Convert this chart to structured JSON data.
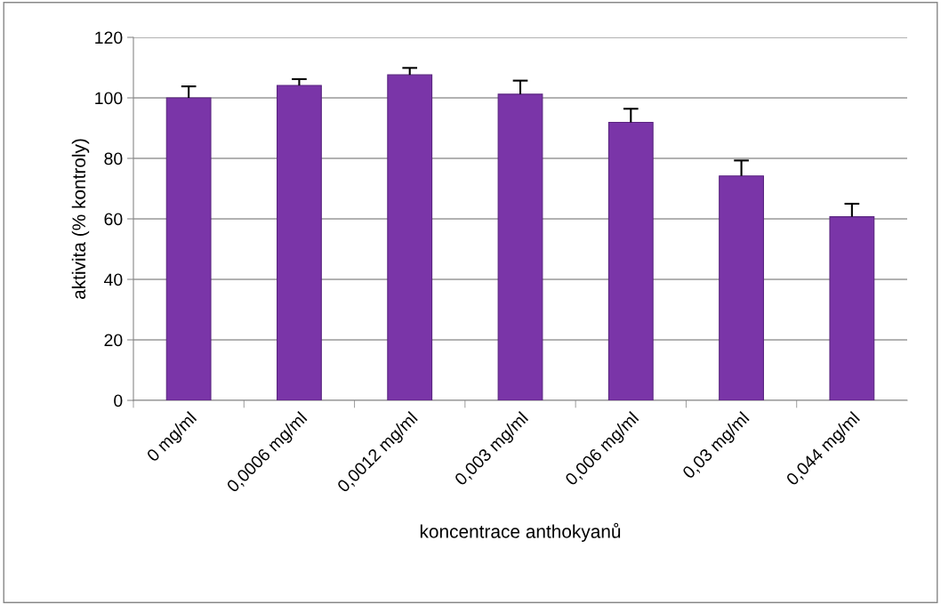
{
  "chart_data": {
    "type": "bar",
    "xlabel": "koncentrace anthokyanů",
    "ylabel": "aktivita (% kontroly)",
    "categories": [
      "0 mg/ml",
      "0,0006 mg/ml",
      "0,0012 mg/ml",
      "0,003 mg/ml",
      "0,006 mg/ml",
      "0,03 mg/ml",
      "0,044 mg/ml"
    ],
    "values": [
      100,
      104.1,
      107.6,
      101.2,
      91.9,
      74.2,
      60.7
    ],
    "errors": [
      [
        100,
        103.8
      ],
      [
        104.1,
        106.2
      ],
      [
        107.6,
        109.9
      ],
      [
        101.2,
        105.7
      ],
      [
        91.9,
        96.4
      ],
      [
        74.2,
        79.3
      ],
      [
        60.7,
        65.0
      ]
    ],
    "color": "#7a35a8",
    "ylim": [
      0,
      120
    ],
    "yticks": [
      0,
      20,
      40,
      60,
      80,
      100,
      120
    ],
    "grid": "y",
    "legend": false
  }
}
